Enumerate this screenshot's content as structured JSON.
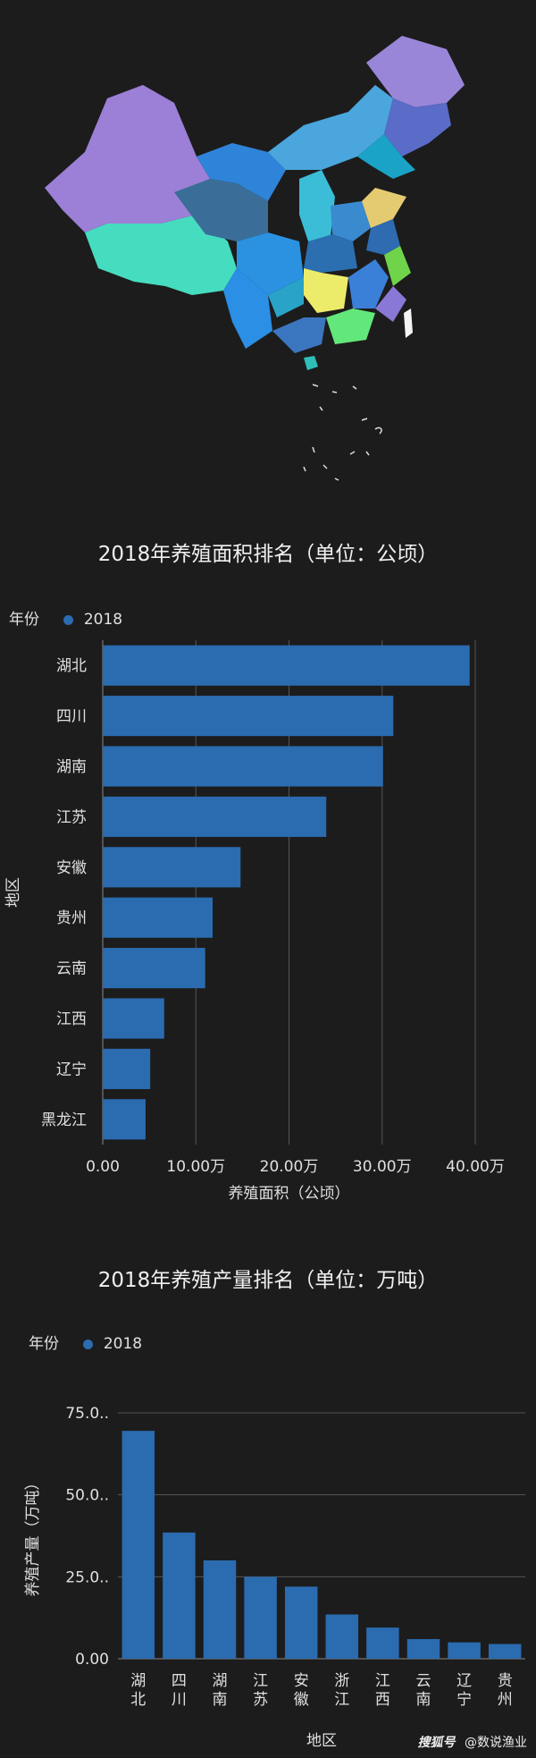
{
  "colors": {
    "background": "#1c1c1c",
    "bar": "#2b6bb0",
    "grid": "#555555",
    "text": "#e0e0e0"
  },
  "map": {
    "icon": "china-map-choropleth"
  },
  "chart_data": [
    {
      "type": "bar",
      "orientation": "horizontal",
      "title": "2018年养殖面积排名（单位：公顷）",
      "legend_label": "年份",
      "series": [
        {
          "name": "2018",
          "values": [
            394000,
            312000,
            301000,
            240000,
            148000,
            118000,
            110000,
            66000,
            51000,
            46000
          ]
        }
      ],
      "categories": [
        "湖北",
        "四川",
        "湖南",
        "江苏",
        "安徽",
        "贵州",
        "云南",
        "江西",
        "辽宁",
        "黑龙江"
      ],
      "xlabel": "养殖面积（公顷）",
      "ylabel": "地区",
      "xticks": [
        "0.00",
        "10.00万",
        "20.00万",
        "30.00万",
        "40.00万"
      ],
      "xlim": [
        0,
        400000
      ],
      "grid": true,
      "legend_position": "top-left"
    },
    {
      "type": "bar",
      "orientation": "vertical",
      "title": "2018年养殖产量排名（单位：万吨）",
      "legend_label": "年份",
      "series": [
        {
          "name": "2018",
          "values": [
            69.5,
            38.5,
            30,
            25,
            22,
            13.5,
            9.5,
            6,
            5,
            4.5
          ]
        }
      ],
      "categories": [
        "湖北",
        "四川",
        "湖南",
        "江苏",
        "安徽",
        "浙江",
        "江西",
        "云南",
        "辽宁",
        "贵州"
      ],
      "xlabel": "地区",
      "ylabel": "养殖产量（万吨）",
      "yticks": [
        "0.00",
        "25.0..",
        "50.0..",
        "75.0.."
      ],
      "ylim": [
        0,
        75
      ],
      "grid": true,
      "legend_position": "top-left"
    }
  ],
  "footer": {
    "brand": "搜狐号",
    "account": "@数说渔业"
  }
}
